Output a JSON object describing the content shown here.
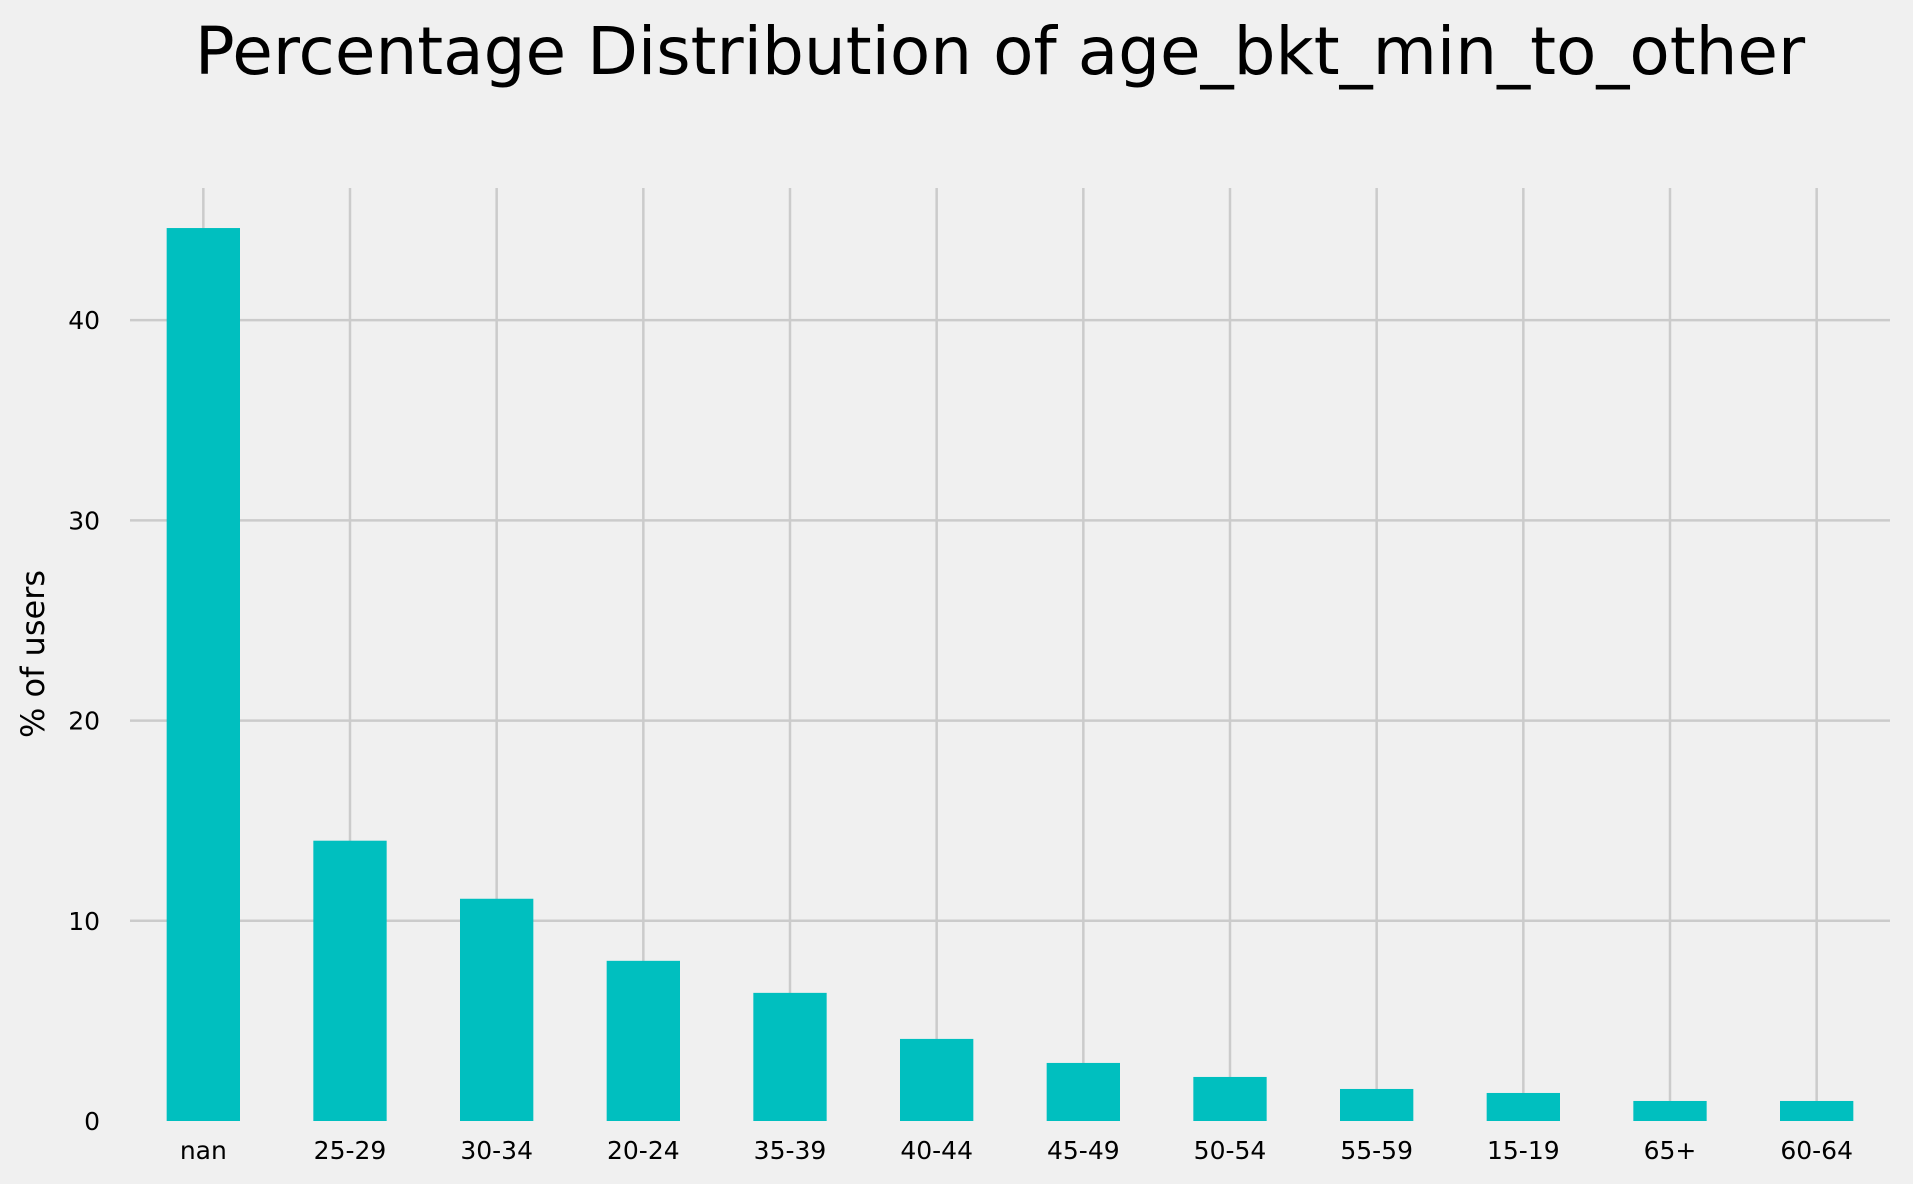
{
  "chart_data": {
    "type": "bar",
    "title": "Percentage Distribution of age_bkt_min_to_other",
    "xlabel": "",
    "ylabel": "% of users",
    "categories": [
      "nan",
      "25-29",
      "30-34",
      "20-24",
      "35-39",
      "40-44",
      "45-49",
      "50-54",
      "55-59",
      "15-19",
      "65+",
      "60-64"
    ],
    "values": [
      44.6,
      14.0,
      11.1,
      8.0,
      6.4,
      4.1,
      2.9,
      2.2,
      1.6,
      1.4,
      1.0,
      1.0
    ],
    "yticks": [
      0,
      10,
      20,
      30,
      40
    ],
    "ylim": [
      0,
      46.6
    ],
    "grid": true,
    "legend": "none",
    "bar_color": "#00bfbf",
    "background_color": "#f0f0f0",
    "grid_color": "#cbcbcb"
  }
}
